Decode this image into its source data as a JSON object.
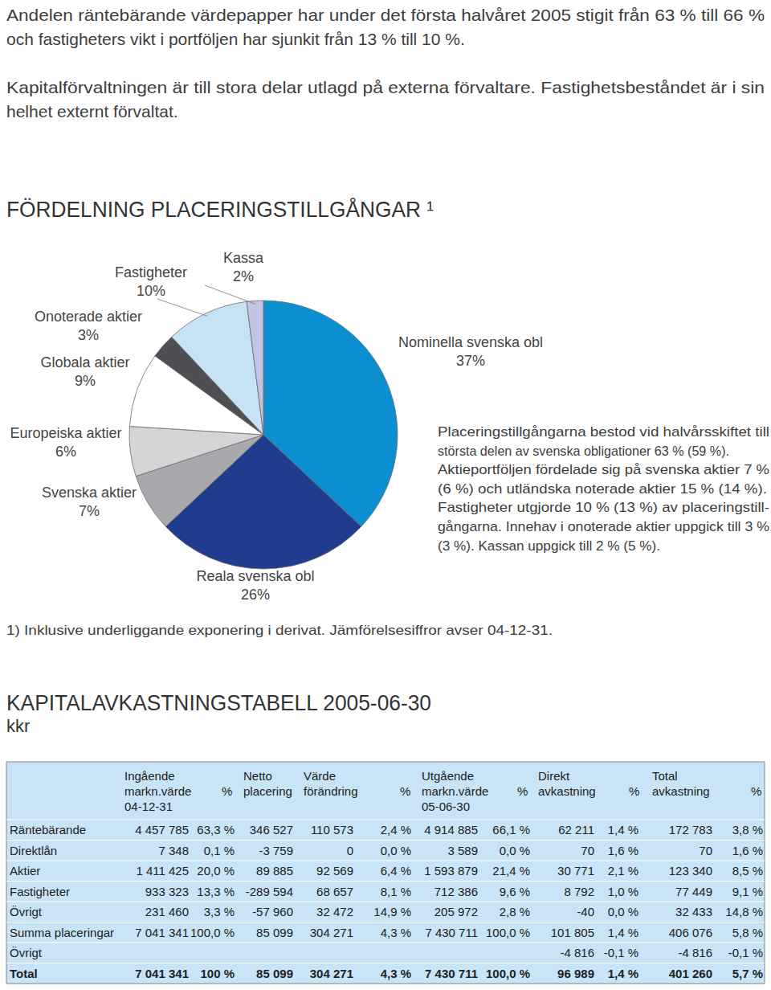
{
  "chart_data": {
    "type": "pie",
    "title": "FÖRDELNING PLACERINGSTILLGÅNGAR ¹",
    "categories": [
      "Nominella svenska obl",
      "Reala svenska obl",
      "Svenska aktier",
      "Europeiska aktier",
      "Globala aktier",
      "Onoterade aktier",
      "Fastigheter",
      "Kassa"
    ],
    "values": [
      37,
      26,
      7,
      6,
      9,
      3,
      10,
      2
    ],
    "value_labels": [
      "37%",
      "26%",
      "7%",
      "6%",
      "9%",
      "3%",
      "10%",
      "2%"
    ],
    "colors": [
      "#0b8fd0",
      "#1f3c8e",
      "#a7a9ac",
      "#d4d5d7",
      "#ffffff",
      "#4d4f53",
      "#c6e3f5",
      "#c3c3e3"
    ],
    "data_labels": true
  },
  "document": {
    "intro": [
      [
        "Andelen räntebärande värdepapper har under det första halvåret 2005 stigit från 63 % till 66 %",
        "och fastigheters vikt i portföljen har sjunkit från 13 % till 10 %."
      ],
      [
        "Kapitalförvaltningen är till stora delar utlagd på externa förvaltare. Fastighetsbeståndet är i sin",
        "helhet externt förvaltat."
      ]
    ],
    "chart_note": [
      "Placeringstillgångarna bestod vid halvårsskiftet till",
      "största delen av svenska obligationer 63 % (59 %).",
      "Aktieportföljen fördelade sig på svenska aktier 7 %",
      "(6 %) och utländska noterade aktier 15 % (14 %).",
      "Fastigheter utgjorde 10 % (13 %) av placeringstill-",
      "gångarna. Innehav i onoterade aktier uppgick till 3 %",
      "(3 %). Kassan uppgick till 2 % (5 %)."
    ],
    "footnote": "1) Inklusive underliggande exponering i derivat. Jämförelsesiffror avser 04-12-31.",
    "table_title": "KAPITALAVKASTNINGSTABELL 2005-06-30",
    "table_unit": "kkr",
    "table": {
      "header": [
        [
          "Ingående",
          "markn.värde",
          "04-12-31"
        ],
        [
          null,
          "%"
        ],
        [
          "Netto",
          "placering"
        ],
        [
          "Värde",
          "förändring"
        ],
        [
          null,
          "%"
        ],
        [
          "Utgående",
          "markn.värde",
          "05-06-30"
        ],
        [
          null,
          "%"
        ],
        [
          "Direkt",
          "avkastning"
        ],
        [
          null,
          "%"
        ],
        [
          "Total",
          "avkastning"
        ],
        [
          null,
          "%"
        ]
      ],
      "rows": [
        [
          "Räntebärande",
          "4 457 785",
          "63,3 %",
          "346 527",
          "110 573",
          "2,4 %",
          "4 914 885",
          "66,1 %",
          "62 211",
          "1,4 %",
          "172 783",
          "3,8 %"
        ],
        [
          "Direktlån",
          "7 348",
          "0,1 %",
          "-3 759",
          "0",
          "0,0 %",
          "3 589",
          "0,0 %",
          "70",
          "1,6 %",
          "70",
          "1,6 %"
        ],
        [
          "Aktier",
          "1 411 425",
          "20,0 %",
          "89 885",
          "92 569",
          "6,4 %",
          "1 593 879",
          "21,4 %",
          "30 771",
          "2,1 %",
          "123 340",
          "8,5 %"
        ],
        [
          "Fastigheter",
          "933 323",
          "13,3 %",
          "-289 594",
          "68 657",
          "8,1 %",
          "712 386",
          "9,6 %",
          "8 792",
          "1,0 %",
          "77 449",
          "9,1 %"
        ],
        [
          "Övrigt",
          "231 460",
          "3,3 %",
          "-57 960",
          "32 472",
          "14,9 %",
          "205 972",
          "2,8 %",
          "-40",
          "0,0 %",
          "32 433",
          "14,8 %"
        ],
        [
          "Summa placeringar",
          "7 041 341",
          "100,0 %",
          "85 099",
          "304 271",
          "4,3 %",
          "7 430 711",
          "100,0 %",
          "101 805",
          "1,4 %",
          "406 076",
          "5,8 %"
        ],
        [
          "Övrigt",
          null,
          null,
          null,
          null,
          null,
          null,
          null,
          "-4 816",
          "-0,1 %",
          "-4 816",
          "-0,1 %"
        ],
        [
          "Total",
          "7 041 341",
          "100 %",
          "85 099",
          "304 271",
          "4,3 %",
          "7 430 711",
          "100,0 %",
          "96 989",
          "1,4 %",
          "401 260",
          "5,7 %"
        ]
      ]
    }
  }
}
